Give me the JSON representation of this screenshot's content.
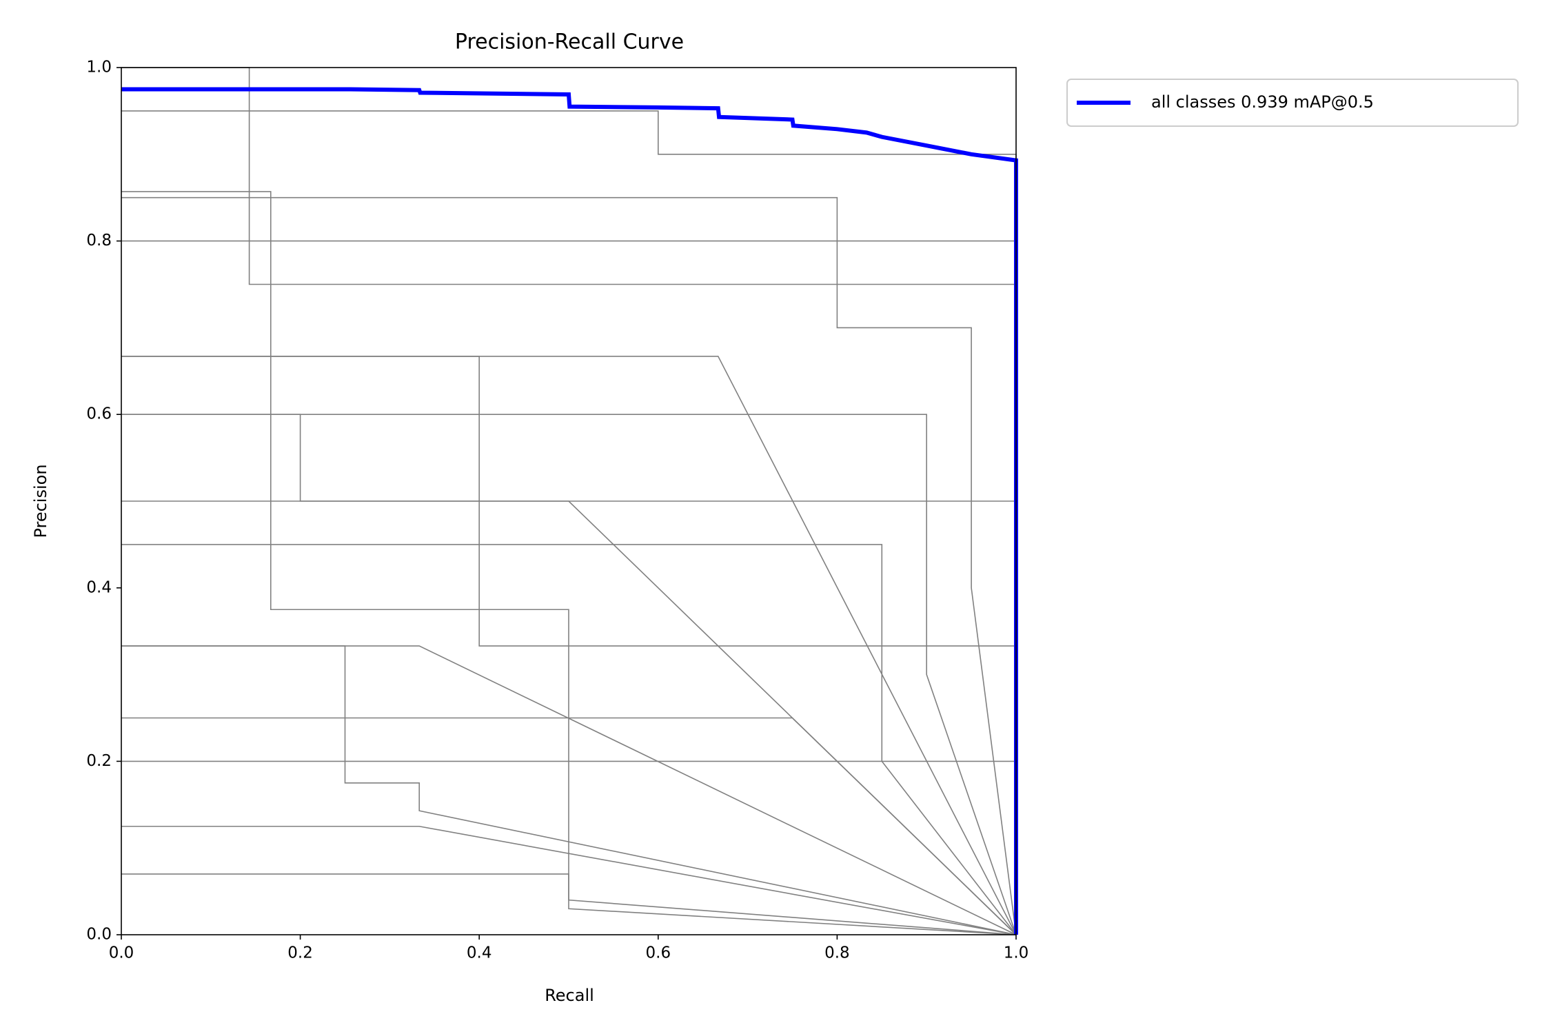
{
  "chart_data": {
    "type": "line",
    "title": "Precision-Recall Curve",
    "x_label": "Recall",
    "y_label": "Precision",
    "xlim": [
      0,
      1
    ],
    "ylim": [
      0,
      1
    ],
    "xticks": [
      {
        "value": 0,
        "label": "0.0"
      },
      0.2,
      0.4,
      0.6,
      0.8,
      {
        "value": 1,
        "label": "1.0"
      }
    ],
    "yticks": [
      {
        "value": 0,
        "label": "0.0"
      },
      0.2,
      0.4,
      0.6,
      0.8,
      {
        "value": 1,
        "label": "1.0"
      }
    ],
    "legend": "outside upper right",
    "series": [
      {
        "name": "all classes 0.939 mAP@0.5",
        "color": "#0000ff",
        "x": [
          0,
          0.25,
          0.333,
          0.334,
          0.5,
          0.501,
          0.6,
          0.667,
          0.668,
          0.75,
          0.751,
          0.8,
          0.833,
          0.85,
          0.9,
          0.95,
          1,
          1
        ],
        "values": [
          0.975,
          0.975,
          0.974,
          0.971,
          0.969,
          0.955,
          0.954,
          0.953,
          0.943,
          0.94,
          0.933,
          0.929,
          0.925,
          0.92,
          0.91,
          0.9,
          0.893,
          0
        ]
      },
      {
        "color": "#808080",
        "x": [
          0,
          0.5,
          0.5,
          1
        ],
        "values": [
          0.5,
          0.5,
          0.5,
          0
        ]
      },
      {
        "color": "#808080",
        "x": [
          0,
          0.667,
          0.667,
          1
        ],
        "values": [
          0.667,
          0.667,
          0.667,
          0
        ]
      },
      {
        "color": "#808080",
        "x": [
          0,
          0.333,
          0.333,
          1
        ],
        "values": [
          0.333,
          0.333,
          0.333,
          0
        ]
      },
      {
        "color": "#808080",
        "x": [
          0,
          0.143,
          0.143,
          1,
          1
        ],
        "values": [
          1,
          1,
          0.75,
          0.75,
          0
        ]
      },
      {
        "color": "#808080",
        "x": [
          0,
          0.167,
          0.167,
          0.5,
          0.5,
          1
        ],
        "values": [
          0.857,
          0.857,
          0.375,
          0.375,
          0.03,
          0
        ]
      },
      {
        "color": "#808080",
        "x": [
          0,
          0.25,
          0.25,
          0.333,
          0.333,
          1
        ],
        "values": [
          0.333,
          0.333,
          0.175,
          0.175,
          0.143,
          0
        ]
      },
      {
        "color": "#808080",
        "x": [
          0,
          0.083,
          0.083,
          1,
          1
        ],
        "values": [
          0.8,
          0.8,
          0.8,
          0.8,
          0
        ]
      },
      {
        "color": "#808080",
        "x": [
          0,
          0.4,
          0.4,
          1,
          1
        ],
        "values": [
          0.667,
          0.667,
          0.333,
          0.333,
          0
        ]
      },
      {
        "color": "#808080",
        "x": [
          0,
          0.2,
          0.2,
          1,
          1
        ],
        "values": [
          0.6,
          0.6,
          0.5,
          0.5,
          0
        ]
      },
      {
        "color": "#808080",
        "x": [
          0,
          0.75,
          0.75,
          1
        ],
        "values": [
          0.25,
          0.25,
          0.25,
          0
        ]
      },
      {
        "color": "#808080",
        "x": [
          0,
          0.5,
          0.5,
          1,
          1
        ],
        "values": [
          0.2,
          0.2,
          0.2,
          0.2,
          0
        ]
      },
      {
        "color": "#808080",
        "x": [
          0,
          0.333,
          0.333,
          1
        ],
        "values": [
          0.125,
          0.125,
          0.125,
          0
        ]
      },
      {
        "color": "#808080",
        "x": [
          0,
          0.5,
          0.5,
          1
        ],
        "values": [
          0.07,
          0.07,
          0.04,
          0
        ]
      },
      {
        "color": "#808080",
        "x": [
          0,
          0.6,
          0.6,
          1,
          1
        ],
        "values": [
          0.95,
          0.95,
          0.9,
          0.9,
          0
        ]
      },
      {
        "color": "#808080",
        "x": [
          0,
          0.8,
          0.8,
          0.95,
          0.95,
          1
        ],
        "values": [
          0.85,
          0.85,
          0.7,
          0.7,
          0.4,
          0
        ]
      },
      {
        "color": "#808080",
        "x": [
          0,
          0.9,
          0.9,
          1
        ],
        "values": [
          0.6,
          0.6,
          0.3,
          0
        ]
      },
      {
        "color": "#808080",
        "x": [
          0,
          0.85,
          0.85,
          1
        ],
        "values": [
          0.45,
          0.45,
          0.2,
          0
        ]
      }
    ]
  }
}
